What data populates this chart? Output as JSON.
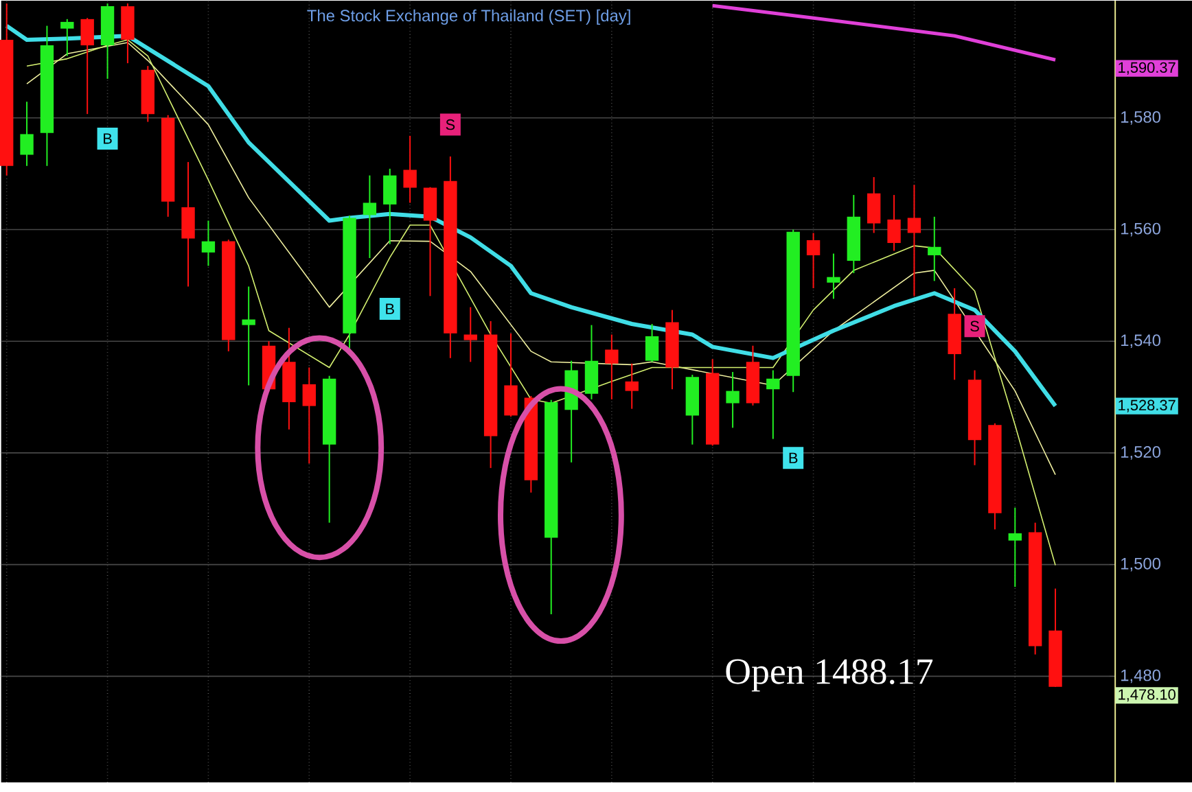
{
  "chart_data": {
    "type": "candlestick",
    "title": "The Stock Exchange of Thailand (SET) [day]",
    "categories": [
      null,
      null,
      null,
      null,
      null,
      null,
      null,
      null,
      null,
      null,
      null,
      null,
      null,
      null,
      null,
      null,
      null,
      null,
      null,
      null,
      null,
      null,
      null,
      null,
      null,
      null,
      null,
      null,
      null,
      null,
      null,
      null,
      null,
      null,
      null,
      null,
      null,
      null,
      null,
      null,
      null,
      null,
      null,
      null,
      null,
      null,
      null,
      null,
      null,
      null,
      null,
      null,
      null
    ],
    "ohlc": [
      [
        1594.0,
        1600.5,
        1569.7,
        1571.4
      ],
      [
        1573.4,
        1582.9,
        1571.4,
        1577.1
      ],
      [
        1577.3,
        1596.5,
        1571.4,
        1593.0
      ],
      [
        1596.0,
        1597.7,
        1591.1,
        1597.2
      ],
      [
        1597.7,
        1597.9,
        1580.7,
        1593.0
      ],
      [
        1593.0,
        1600.5,
        1587.0,
        1600.0
      ],
      [
        1600.0,
        1600.5,
        1589.8,
        1594.0
      ],
      [
        1588.6,
        1589.3,
        1579.3,
        1580.7
      ],
      [
        1580.0,
        1580.5,
        1562.3,
        1565.0
      ],
      [
        1564.0,
        1572.1,
        1549.8,
        1558.4
      ],
      [
        1555.9,
        1561.6,
        1553.5,
        1557.9
      ],
      [
        1557.9,
        1558.2,
        1538.2,
        1540.2
      ],
      [
        1542.9,
        1549.8,
        1532.1,
        1543.9
      ],
      [
        1539.2,
        1540.0,
        1531.0,
        1531.4
      ],
      [
        1536.3,
        1542.4,
        1524.2,
        1529.1
      ],
      [
        1532.3,
        1535.3,
        1518.1,
        1528.4
      ],
      [
        1521.5,
        1533.8,
        1507.5,
        1533.3
      ],
      [
        1541.4,
        1562.5,
        1538.7,
        1562.1
      ],
      [
        1562.6,
        1569.7,
        1554.9,
        1564.8
      ],
      [
        1564.5,
        1570.9,
        1557.4,
        1569.7
      ],
      [
        1570.7,
        1576.8,
        1564.8,
        1567.5
      ],
      [
        1567.5,
        1567.6,
        1548.1,
        1561.6
      ],
      [
        1568.7,
        1573.1,
        1537.0,
        1541.4
      ],
      [
        1541.2,
        1546.1,
        1536.3,
        1540.2
      ],
      [
        1541.2,
        1543.6,
        1517.3,
        1523.0
      ],
      [
        1532.1,
        1541.4,
        1526.5,
        1526.7
      ],
      [
        1529.9,
        1530.2,
        1512.9,
        1515.1
      ],
      [
        1504.8,
        1529.5,
        1491.1,
        1529.1
      ],
      [
        1527.7,
        1536.5,
        1518.3,
        1534.8
      ],
      [
        1530.6,
        1542.9,
        1529.6,
        1536.5
      ],
      [
        1538.5,
        1541.2,
        1529.6,
        1536.0
      ],
      [
        1532.8,
        1536.0,
        1527.9,
        1531.1
      ],
      [
        1536.5,
        1543.1,
        1536.3,
        1540.9
      ],
      [
        1543.4,
        1545.6,
        1531.4,
        1535.3
      ],
      [
        1526.7,
        1534.0,
        1521.5,
        1533.6
      ],
      [
        1534.3,
        1536.8,
        1521.3,
        1521.5
      ],
      [
        1528.9,
        1534.5,
        1524.5,
        1531.1
      ],
      [
        1536.3,
        1539.2,
        1528.5,
        1528.9
      ],
      [
        1531.4,
        1534.8,
        1522.5,
        1533.3
      ],
      [
        1533.8,
        1560.0,
        1530.9,
        1559.6
      ],
      [
        1558.1,
        1559.4,
        1549.5,
        1555.4
      ],
      [
        1550.5,
        1555.7,
        1547.6,
        1551.5
      ],
      [
        1554.4,
        1566.2,
        1552.2,
        1562.3
      ],
      [
        1566.5,
        1569.4,
        1559.4,
        1561.1
      ],
      [
        1561.8,
        1566.2,
        1556.2,
        1557.6
      ],
      [
        1562.1,
        1568.0,
        1548.1,
        1559.4
      ],
      [
        1555.4,
        1562.3,
        1550.8,
        1556.9
      ],
      [
        1544.9,
        1549.5,
        1533.1,
        1537.7
      ],
      [
        1533.1,
        1534.8,
        1517.8,
        1522.3
      ],
      [
        1525.0,
        1525.3,
        1506.3,
        1509.2
      ],
      [
        1504.3,
        1510.2,
        1496.0,
        1505.6
      ],
      [
        1505.8,
        1507.5,
        1483.9,
        1485.4
      ],
      [
        1488.17,
        1495.7,
        1478.1,
        1478.1
      ]
    ],
    "series": [
      {
        "type": "line",
        "color": "#e040d8",
        "values": [
          null,
          null,
          null,
          null,
          null,
          null,
          null,
          null,
          null,
          null,
          null,
          null,
          null,
          null,
          null,
          null,
          null,
          null,
          null,
          null,
          null,
          null,
          null,
          null,
          null,
          null,
          null,
          null,
          null,
          null,
          null,
          null,
          null,
          null,
          null,
          1600.1,
          null,
          null,
          null,
          null,
          1597.9,
          null,
          null,
          null,
          null,
          null,
          null,
          1594.7,
          null,
          null,
          null,
          null,
          1590.4
        ]
      },
      {
        "type": "line",
        "color": "#f0f0a0",
        "values": [
          null,
          1586.1,
          null,
          1591.5,
          null,
          null,
          1593.5,
          1590.3,
          null,
          null,
          1578.8,
          null,
          1565.7,
          null,
          null,
          null,
          1546.1,
          null,
          null,
          1558.0,
          null,
          1557.9,
          null,
          1552.5,
          null,
          null,
          1538.2,
          1536.3,
          null,
          null,
          null,
          1535.8,
          1536.3,
          null,
          null,
          null,
          null,
          null,
          1532.1,
          null,
          null,
          1541.9,
          null,
          null,
          null,
          1552.2,
          1552.7,
          null,
          null,
          null,
          1531.1,
          null,
          1516.1
        ]
      },
      {
        "type": "line",
        "color": "#d4f070",
        "values": [
          null,
          1589.3,
          null,
          1590.6,
          null,
          1593.0,
          1594.0,
          1591.1,
          null,
          null,
          1568.9,
          null,
          1553.5,
          1541.9,
          null,
          null,
          1535.3,
          1541.2,
          null,
          1555.0,
          1560.8,
          1560.8,
          null,
          null,
          1541.2,
          null,
          1529.6,
          1528.9,
          null,
          null,
          1532.8,
          null,
          1535.3,
          null,
          null,
          null,
          null,
          null,
          1535.3,
          null,
          1545.6,
          null,
          1552.7,
          null,
          null,
          1557.1,
          1556.7,
          null,
          1549.0,
          null,
          1525.0,
          null,
          1499.9
        ]
      },
      {
        "type": "line",
        "color": "#40dde6",
        "values": [
          1596.5,
          1594.0,
          null,
          1594.2,
          null,
          null,
          1594.7,
          null,
          null,
          null,
          1585.7,
          null,
          1575.6,
          null,
          null,
          null,
          1561.6,
          1562.1,
          null,
          1562.8,
          null,
          1562.3,
          null,
          1558.6,
          null,
          1553.5,
          1548.6,
          null,
          1546.1,
          null,
          null,
          1543.1,
          null,
          null,
          1541.2,
          1539.0,
          null,
          null,
          1537.0,
          null,
          null,
          1541.9,
          null,
          null,
          1546.3,
          null,
          1548.6,
          null,
          1545.6,
          null,
          1538.2,
          null,
          1528.4
        ]
      },
      {
        "type": "scatter",
        "color": "#3fe3ec",
        "marker": "square",
        "values": [
          null,
          null,
          null,
          null,
          null,
          1576.3,
          null,
          null,
          null,
          null,
          null,
          null,
          null,
          null,
          null,
          null,
          null,
          null,
          null,
          1545.8,
          null,
          null,
          null,
          null,
          null,
          null,
          null,
          null,
          null,
          null,
          null,
          null,
          null,
          null,
          null,
          null,
          null,
          null,
          null,
          1519.1,
          null,
          null,
          null,
          null,
          null,
          null,
          null,
          null,
          null,
          null,
          null,
          null,
          null
        ],
        "value_labels": [
          null,
          null,
          null,
          null,
          null,
          "B",
          null,
          null,
          null,
          null,
          null,
          null,
          null,
          null,
          null,
          null,
          null,
          null,
          null,
          "B",
          null,
          null,
          null,
          null,
          null,
          null,
          null,
          null,
          null,
          null,
          null,
          null,
          null,
          null,
          null,
          null,
          null,
          null,
          null,
          "B",
          null,
          null,
          null,
          null,
          null,
          null,
          null,
          null,
          null,
          null,
          null,
          null,
          null
        ]
      },
      {
        "type": "scatter",
        "color": "#e8217a",
        "marker": "square",
        "values": [
          null,
          null,
          null,
          null,
          null,
          null,
          null,
          null,
          null,
          null,
          null,
          null,
          null,
          null,
          null,
          null,
          null,
          null,
          null,
          null,
          null,
          null,
          1578.8,
          null,
          null,
          null,
          null,
          null,
          null,
          null,
          null,
          null,
          null,
          null,
          null,
          null,
          null,
          null,
          null,
          null,
          null,
          null,
          null,
          null,
          null,
          null,
          null,
          null,
          1542.7,
          null,
          null,
          null,
          null
        ],
        "value_labels": [
          null,
          null,
          null,
          null,
          null,
          null,
          null,
          null,
          null,
          null,
          null,
          null,
          null,
          null,
          null,
          null,
          null,
          null,
          null,
          null,
          null,
          null,
          "S",
          null,
          null,
          null,
          null,
          null,
          null,
          null,
          null,
          null,
          null,
          null,
          null,
          null,
          null,
          null,
          null,
          null,
          null,
          null,
          null,
          null,
          null,
          null,
          null,
          null,
          "S",
          null,
          null,
          null,
          null
        ]
      }
    ],
    "ylim": [
      1461,
      1601
    ],
    "yticks": [
      {
        "value": 1480,
        "label": "1,480"
      },
      {
        "value": 1500,
        "label": "1,500"
      },
      {
        "value": 1520,
        "label": "1,520"
      },
      {
        "value": 1540,
        "label": "1,540"
      },
      {
        "value": 1560,
        "label": "1,560"
      },
      {
        "value": 1580,
        "label": "1,580"
      }
    ],
    "grid": true,
    "tick_labels": "y",
    "annotations": [
      "1,590.37",
      "1,528.37",
      "1,478.10",
      "Open 1488.17"
    ]
  }
}
